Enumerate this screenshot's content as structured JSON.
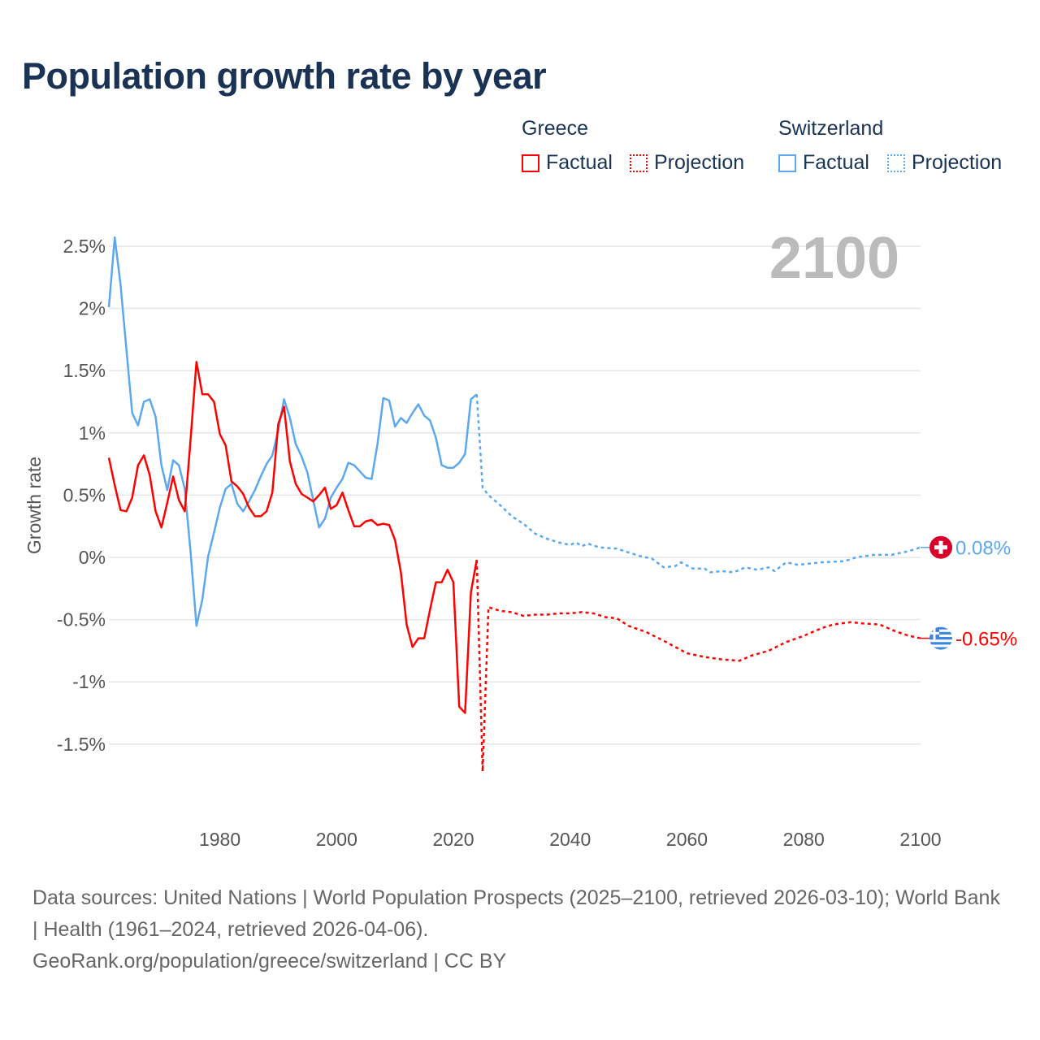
{
  "title": "Population growth rate by year",
  "legend": {
    "groups": [
      {
        "name": "Greece",
        "factual": "Factual",
        "projection": "Projection",
        "color": "#ff0000"
      },
      {
        "name": "Switzerland",
        "factual": "Factual",
        "projection": "Projection",
        "color": "#5ca8ee"
      }
    ]
  },
  "footer": {
    "sources": "Data sources: United Nations | World Population Prospects (2025–2100, retrieved 2026-03-10); World Bank | Health (1961–2024, retrieved 2026-04-06).",
    "credit": "GeoRank.org/population/greece/switzerland | CC BY"
  },
  "chart_data": {
    "type": "line",
    "title": "Population growth rate by year",
    "ylabel": "Growth rate",
    "xlabel": "",
    "year_label": "2100",
    "xlim": [
      1961,
      2100
    ],
    "ylim": [
      -2.0,
      2.65
    ],
    "grid": true,
    "x_ticks": [
      1980,
      2000,
      2020,
      2040,
      2060,
      2080,
      2100
    ],
    "y_ticks": [
      2.5,
      2,
      1.5,
      1,
      0.5,
      0,
      -0.5,
      -1,
      -1.5
    ],
    "y_tick_labels": [
      "2.5%",
      "2%",
      "1.5%",
      "1%",
      "0.5%",
      "0%",
      "-0.5%",
      "-1%",
      "-1.5%"
    ],
    "series": [
      {
        "name": "Switzerland Factual",
        "color": "#5ca8ee",
        "style": "solid",
        "x": [
          1961,
          1962,
          1963,
          1964,
          1965,
          1966,
          1967,
          1968,
          1969,
          1970,
          1971,
          1972,
          1973,
          1974,
          1975,
          1976,
          1977,
          1978,
          1979,
          1980,
          1981,
          1982,
          1983,
          1984,
          1985,
          1986,
          1987,
          1988,
          1989,
          1990,
          1991,
          1992,
          1993,
          1994,
          1995,
          1996,
          1997,
          1998,
          1999,
          2000,
          2001,
          2002,
          2003,
          2004,
          2005,
          2006,
          2007,
          2008,
          2009,
          2010,
          2011,
          2012,
          2013,
          2014,
          2015,
          2016,
          2017,
          2018,
          2019,
          2020,
          2021,
          2022,
          2023,
          2024
        ],
        "values": [
          2.01,
          2.57,
          2.19,
          1.67,
          1.16,
          1.06,
          1.25,
          1.27,
          1.13,
          0.74,
          0.54,
          0.78,
          0.74,
          0.55,
          0.04,
          -0.55,
          -0.34,
          0.01,
          0.2,
          0.4,
          0.55,
          0.59,
          0.43,
          0.37,
          0.45,
          0.54,
          0.65,
          0.75,
          0.82,
          1.02,
          1.27,
          1.12,
          0.91,
          0.81,
          0.68,
          0.46,
          0.24,
          0.31,
          0.48,
          0.56,
          0.63,
          0.76,
          0.74,
          0.69,
          0.64,
          0.63,
          0.91,
          1.28,
          1.26,
          1.05,
          1.12,
          1.08,
          1.16,
          1.23,
          1.14,
          1.1,
          0.96,
          0.74,
          0.72,
          0.72,
          0.76,
          0.83,
          1.27,
          1.31
        ]
      },
      {
        "name": "Switzerland Projection",
        "color": "#5ca8ee",
        "style": "dotted",
        "x": [
          2024,
          2025,
          2026,
          2028,
          2030,
          2032,
          2034,
          2036,
          2038,
          2040,
          2041,
          2042,
          2043,
          2045,
          2048,
          2050,
          2052,
          2054,
          2056,
          2058,
          2059,
          2061,
          2063,
          2064,
          2066,
          2068,
          2070,
          2072,
          2074,
          2075,
          2077,
          2079,
          2083,
          2087,
          2089,
          2092,
          2095,
          2098,
          2100
        ],
        "values": [
          1.31,
          0.56,
          0.5,
          0.42,
          0.33,
          0.27,
          0.19,
          0.15,
          0.12,
          0.1,
          0.12,
          0.09,
          0.11,
          0.08,
          0.07,
          0.04,
          0.01,
          -0.01,
          -0.08,
          -0.07,
          -0.04,
          -0.09,
          -0.09,
          -0.12,
          -0.11,
          -0.12,
          -0.08,
          -0.1,
          -0.08,
          -0.11,
          -0.04,
          -0.06,
          -0.04,
          -0.03,
          0.0,
          0.02,
          0.02,
          0.05,
          0.08
        ],
        "end_label": "0.08%",
        "flag": "switzerland"
      },
      {
        "name": "Greece Factual",
        "color": "#ff0000",
        "style": "solid",
        "x": [
          1961,
          1962,
          1963,
          1964,
          1965,
          1966,
          1967,
          1968,
          1969,
          1970,
          1971,
          1972,
          1973,
          1974,
          1975,
          1976,
          1977,
          1978,
          1979,
          1980,
          1981,
          1982,
          1983,
          1984,
          1985,
          1986,
          1987,
          1988,
          1989,
          1990,
          1991,
          1992,
          1993,
          1994,
          1995,
          1996,
          1997,
          1998,
          1999,
          2000,
          2001,
          2002,
          2003,
          2004,
          2005,
          2006,
          2007,
          2008,
          2009,
          2010,
          2011,
          2012,
          2013,
          2014,
          2015,
          2016,
          2017,
          2018,
          2019,
          2020,
          2021,
          2022,
          2023,
          2024
        ],
        "values": [
          0.8,
          0.58,
          0.38,
          0.37,
          0.48,
          0.74,
          0.82,
          0.66,
          0.37,
          0.24,
          0.44,
          0.65,
          0.46,
          0.37,
          0.95,
          1.57,
          1.31,
          1.31,
          1.25,
          0.99,
          0.9,
          0.61,
          0.57,
          0.51,
          0.4,
          0.33,
          0.33,
          0.37,
          0.52,
          1.07,
          1.21,
          0.77,
          0.59,
          0.51,
          0.48,
          0.45,
          0.5,
          0.56,
          0.39,
          0.42,
          0.52,
          0.38,
          0.25,
          0.25,
          0.29,
          0.3,
          0.26,
          0.27,
          0.26,
          0.14,
          -0.12,
          -0.54,
          -0.72,
          -0.65,
          -0.65,
          -0.42,
          -0.2,
          -0.2,
          -0.1,
          -0.2,
          -1.2,
          -1.25,
          -0.28,
          -0.02
        ]
      },
      {
        "name": "Greece Projection",
        "color": "#ff0000",
        "style": "dotted",
        "x": [
          2024,
          2025,
          2026,
          2028,
          2030,
          2032,
          2034,
          2036,
          2038,
          2040,
          2042,
          2044,
          2046,
          2048,
          2050,
          2053,
          2056,
          2058,
          2060,
          2063,
          2066,
          2069,
          2071,
          2074,
          2077,
          2080,
          2083,
          2085,
          2088,
          2090,
          2093,
          2096,
          2098,
          2100
        ],
        "values": [
          -0.02,
          -1.72,
          -0.4,
          -0.43,
          -0.44,
          -0.47,
          -0.46,
          -0.46,
          -0.45,
          -0.45,
          -0.44,
          -0.45,
          -0.48,
          -0.49,
          -0.55,
          -0.6,
          -0.67,
          -0.72,
          -0.77,
          -0.8,
          -0.82,
          -0.83,
          -0.79,
          -0.75,
          -0.68,
          -0.63,
          -0.57,
          -0.54,
          -0.52,
          -0.53,
          -0.54,
          -0.6,
          -0.63,
          -0.65
        ],
        "end_label": "-0.65%",
        "flag": "greece"
      }
    ]
  }
}
